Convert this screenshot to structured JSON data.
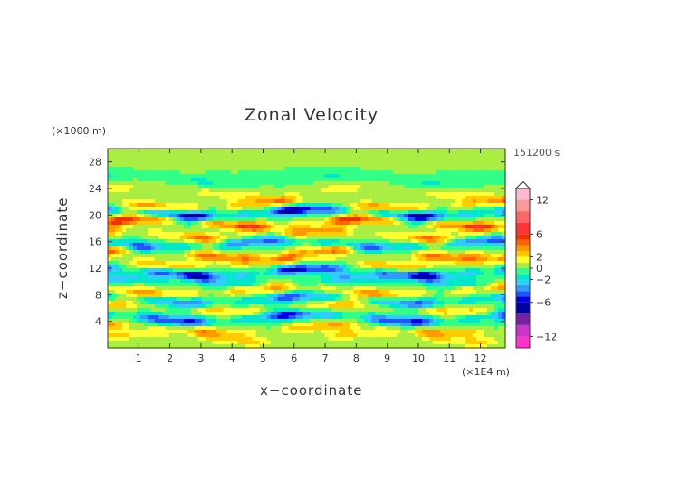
{
  "chart_data": {
    "type": "heatmap",
    "title": "Zonal Velocity",
    "xlabel": "x−coordinate",
    "ylabel": "z−coordinate",
    "x_unit": "(×1E4 m)",
    "y_unit": "(×1000 m)",
    "time_label": "151200 s",
    "xlim": [
      0,
      12.8
    ],
    "ylim": [
      0,
      30
    ],
    "x_ticks": [
      "1",
      "2",
      "3",
      "4",
      "5",
      "6",
      "7",
      "8",
      "9",
      "10",
      "11",
      "12"
    ],
    "y_ticks": [
      "4",
      "8",
      "12",
      "16",
      "20",
      "24",
      "28"
    ],
    "colorbar": {
      "labels": [
        "12",
        "6",
        "2",
        "0",
        "−2",
        "−6",
        "−12"
      ],
      "levels": [
        -14,
        -12,
        -10,
        -8,
        -6,
        -5,
        -4,
        -3,
        -2,
        -1,
        0,
        1,
        2,
        3,
        4,
        5,
        6,
        8,
        10,
        12,
        14
      ],
      "colors": [
        "#ff33cc",
        "#cc33cc",
        "#7a1fa2",
        "#0000a0",
        "#0000e0",
        "#2255ff",
        "#3399ff",
        "#33ccff",
        "#00e8cc",
        "#33ff88",
        "#aaee44",
        "#ffff33",
        "#ffcc00",
        "#ff9900",
        "#ff6600",
        "#ee3300",
        "#ff3333",
        "#ff6666",
        "#ff9999",
        "#ffbbcc"
      ]
    },
    "bands": [
      {
        "z": 1.5,
        "v": 2,
        "phase": 0.3
      },
      {
        "z": 2.8,
        "v": 3,
        "phase": 1.1
      },
      {
        "z": 4.5,
        "v": -5,
        "phase": 2.0
      },
      {
        "z": 6.0,
        "v": 2.5,
        "phase": 0.7
      },
      {
        "z": 7.2,
        "v": -4,
        "phase": 1.9
      },
      {
        "z": 8.6,
        "v": 3.5,
        "phase": 2.7
      },
      {
        "z": 10.0,
        "v": -2.5,
        "phase": 0.4
      },
      {
        "z": 11.4,
        "v": -5.5,
        "phase": 1.6
      },
      {
        "z": 12.8,
        "v": 3,
        "phase": 2.3
      },
      {
        "z": 14.2,
        "v": 4,
        "phase": 0.9
      },
      {
        "z": 15.6,
        "v": -4.5,
        "phase": 2.9
      },
      {
        "z": 17.0,
        "v": 3.5,
        "phase": 1.3
      },
      {
        "z": 18.8,
        "v": 5,
        "phase": 0.2
      },
      {
        "z": 20.3,
        "v": -6,
        "phase": 1.7
      },
      {
        "z": 21.6,
        "v": 3.5,
        "phase": 2.5
      },
      {
        "z": 23.5,
        "v": 1.5,
        "phase": 0.6
      },
      {
        "z": 25.5,
        "v": -1,
        "phase": 1.2
      },
      {
        "z": 28.0,
        "v": 0.5,
        "phase": 2.2
      }
    ]
  }
}
